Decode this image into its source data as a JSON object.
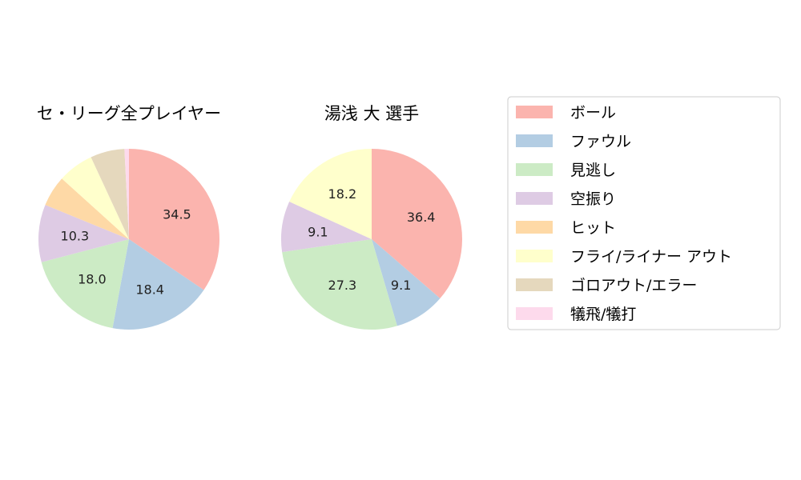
{
  "chart_data": [
    {
      "type": "pie",
      "title": "セ・リーグ全プレイヤー",
      "categories": [
        "ボール",
        "ファウル",
        "見逃し",
        "空振り",
        "ヒット",
        "フライ/ライナー アウト",
        "ゴロアウト/エラー",
        "犠飛/犠打"
      ],
      "values": [
        34.5,
        18.4,
        18.0,
        10.3,
        5.5,
        6.4,
        6.1,
        0.8
      ],
      "labels": [
        "34.5",
        "18.4",
        "18.0",
        "10.3",
        "",
        "",
        "",
        ""
      ]
    },
    {
      "type": "pie",
      "title": "湯浅 大  選手",
      "categories": [
        "ボール",
        "ファウル",
        "見逃し",
        "空振り",
        "ヒット",
        "フライ/ライナー アウト",
        "ゴロアウト/エラー",
        "犠飛/犠打"
      ],
      "values": [
        36.4,
        9.1,
        27.3,
        9.1,
        0,
        18.2,
        0,
        0
      ],
      "labels": [
        "36.4",
        "9.1",
        "27.3",
        "9.1",
        "",
        "18.2",
        "",
        ""
      ]
    }
  ],
  "legend": {
    "placement": "right",
    "entries": [
      "ボール",
      "ファウル",
      "見逃し",
      "空振り",
      "ヒット",
      "フライ/ライナー アウト",
      "ゴロアウト/エラー",
      "犠飛/犠打"
    ],
    "colors": [
      "#fbb4ae",
      "#b3cde3",
      "#ccebc5",
      "#decbe4",
      "#fed9a6",
      "#ffffcc",
      "#e5d8bd",
      "#fddaec"
    ]
  }
}
